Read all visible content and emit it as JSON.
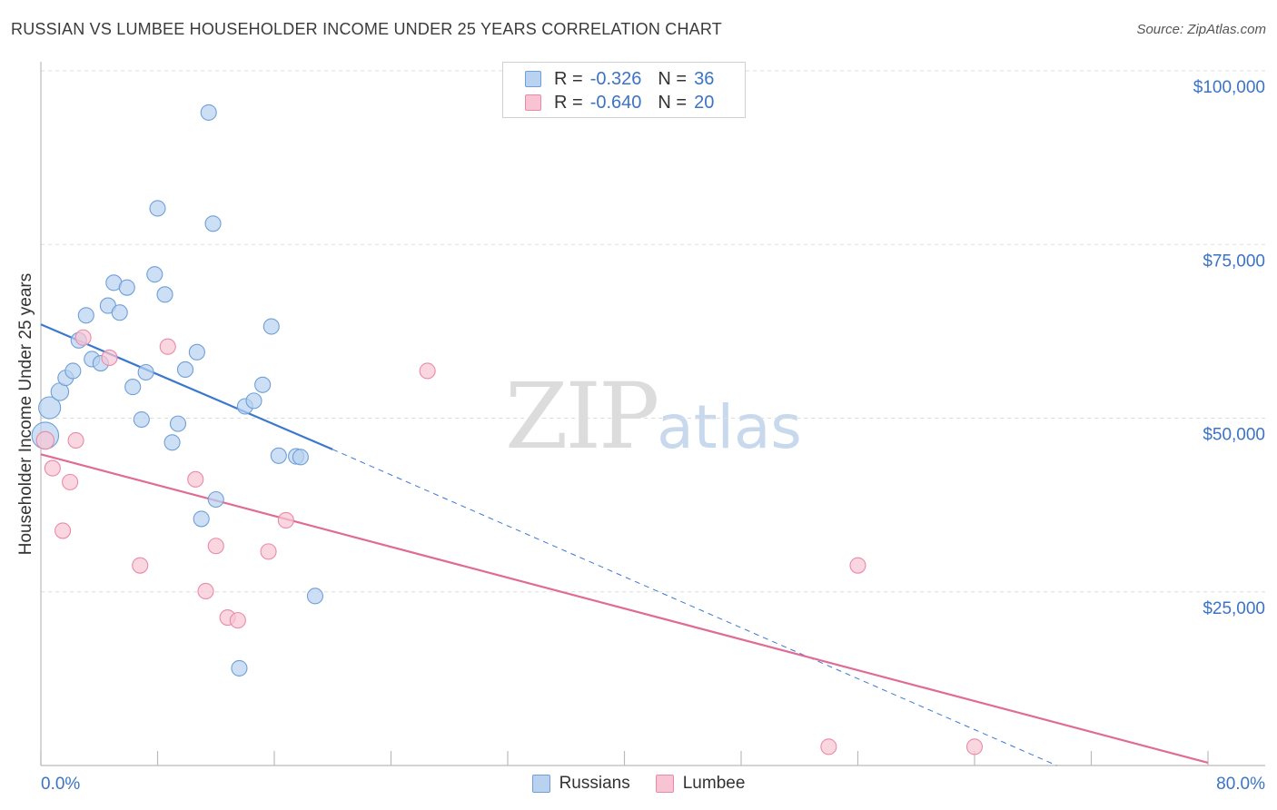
{
  "header": {
    "title": "RUSSIAN VS LUMBEE HOUSEHOLDER INCOME UNDER 25 YEARS CORRELATION CHART",
    "source": "Source: ZipAtlas.com"
  },
  "watermark": {
    "zip": "ZIP",
    "atlas": "atlas"
  },
  "legend": {
    "r_label": "R =",
    "n_label": "N =",
    "rows": [
      {
        "name": "Russians",
        "r": "-0.326",
        "n": "36",
        "fill": "#b8d2f0",
        "stroke": "#6f9fd8"
      },
      {
        "name": "Lumbee",
        "r": "-0.640",
        "n": "20",
        "fill": "#f8c4d4",
        "stroke": "#e98aa8"
      }
    ]
  },
  "chart_data": {
    "type": "scatter",
    "title": "RUSSIAN VS LUMBEE HOUSEHOLDER INCOME UNDER 25 YEARS CORRELATION CHART",
    "xlabel": "",
    "ylabel": "Householder Income Under 25 years",
    "xlim": [
      0,
      80
    ],
    "ylim": [
      0,
      105000
    ],
    "x_tick_labels": [
      "0.0%",
      "80.0%"
    ],
    "y_ticks": [
      25000,
      50000,
      75000,
      100000
    ],
    "y_tick_labels": [
      "$25,000",
      "$50,000",
      "$75,000",
      "$100,000"
    ],
    "grid": true,
    "series": [
      {
        "name": "Russians",
        "color": "#6f9fd8",
        "fill": "#b8d2f0",
        "points": [
          {
            "x": 0.3,
            "y": 47500,
            "s": 3
          },
          {
            "x": 0.6,
            "y": 51500,
            "s": 2
          },
          {
            "x": 1.3,
            "y": 53800,
            "s": 1.3
          },
          {
            "x": 1.7,
            "y": 55800,
            "s": 1
          },
          {
            "x": 2.2,
            "y": 56800,
            "s": 1
          },
          {
            "x": 2.6,
            "y": 61200,
            "s": 1
          },
          {
            "x": 3.1,
            "y": 64800,
            "s": 1
          },
          {
            "x": 3.5,
            "y": 58500,
            "s": 1
          },
          {
            "x": 4.1,
            "y": 57900,
            "s": 1
          },
          {
            "x": 4.6,
            "y": 66200,
            "s": 1
          },
          {
            "x": 5.0,
            "y": 69500,
            "s": 1
          },
          {
            "x": 5.4,
            "y": 65200,
            "s": 1
          },
          {
            "x": 5.9,
            "y": 68800,
            "s": 1
          },
          {
            "x": 6.3,
            "y": 54500,
            "s": 1
          },
          {
            "x": 6.9,
            "y": 49800,
            "s": 1
          },
          {
            "x": 7.2,
            "y": 56600,
            "s": 1
          },
          {
            "x": 7.8,
            "y": 70700,
            "s": 1
          },
          {
            "x": 8.0,
            "y": 80200,
            "s": 1
          },
          {
            "x": 8.5,
            "y": 67800,
            "s": 1
          },
          {
            "x": 9.0,
            "y": 46500,
            "s": 1
          },
          {
            "x": 9.4,
            "y": 49200,
            "s": 1
          },
          {
            "x": 9.9,
            "y": 57000,
            "s": 1
          },
          {
            "x": 10.7,
            "y": 59500,
            "s": 1
          },
          {
            "x": 11.0,
            "y": 35500,
            "s": 1
          },
          {
            "x": 11.5,
            "y": 94000,
            "s": 1
          },
          {
            "x": 11.8,
            "y": 78000,
            "s": 1
          },
          {
            "x": 12.0,
            "y": 38300,
            "s": 1
          },
          {
            "x": 13.6,
            "y": 14000,
            "s": 1
          },
          {
            "x": 14.0,
            "y": 51700,
            "s": 1
          },
          {
            "x": 14.6,
            "y": 52500,
            "s": 1
          },
          {
            "x": 15.2,
            "y": 54800,
            "s": 1
          },
          {
            "x": 15.8,
            "y": 63200,
            "s": 1
          },
          {
            "x": 16.3,
            "y": 44600,
            "s": 1
          },
          {
            "x": 17.5,
            "y": 44500,
            "s": 1
          },
          {
            "x": 17.8,
            "y": 44400,
            "s": 1
          },
          {
            "x": 18.8,
            "y": 24400,
            "s": 1
          }
        ],
        "trend": {
          "x": [
            0,
            20
          ],
          "y": [
            63500,
            45500
          ],
          "dashed_to": {
            "x": 80,
            "y": -9500
          }
        }
      },
      {
        "name": "Lumbee",
        "color": "#e98aa8",
        "fill": "#f8c4d4",
        "points": [
          {
            "x": 0.3,
            "y": 46800,
            "s": 1.3
          },
          {
            "x": 0.8,
            "y": 42800,
            "s": 1
          },
          {
            "x": 1.5,
            "y": 33800,
            "s": 1
          },
          {
            "x": 2.0,
            "y": 40800,
            "s": 1
          },
          {
            "x": 2.4,
            "y": 46800,
            "s": 1
          },
          {
            "x": 2.9,
            "y": 61600,
            "s": 1
          },
          {
            "x": 4.7,
            "y": 58700,
            "s": 1
          },
          {
            "x": 6.8,
            "y": 28800,
            "s": 1
          },
          {
            "x": 8.7,
            "y": 60300,
            "s": 1
          },
          {
            "x": 10.6,
            "y": 41200,
            "s": 1
          },
          {
            "x": 11.3,
            "y": 25100,
            "s": 1
          },
          {
            "x": 12.0,
            "y": 31600,
            "s": 1
          },
          {
            "x": 12.8,
            "y": 21300,
            "s": 1
          },
          {
            "x": 13.5,
            "y": 20900,
            "s": 1
          },
          {
            "x": 15.6,
            "y": 30800,
            "s": 1
          },
          {
            "x": 16.8,
            "y": 35300,
            "s": 1
          },
          {
            "x": 26.5,
            "y": 56800,
            "s": 1
          },
          {
            "x": 54.0,
            "y": 2700,
            "s": 1
          },
          {
            "x": 56.0,
            "y": 28800,
            "s": 1
          },
          {
            "x": 64.0,
            "y": 2700,
            "s": 1
          }
        ],
        "trend": {
          "x": [
            0,
            80
          ],
          "y": [
            44800,
            400
          ]
        }
      }
    ]
  }
}
